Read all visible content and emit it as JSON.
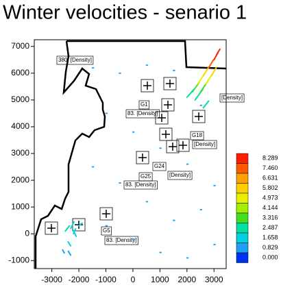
{
  "chart_data": {
    "type": "vector",
    "title": "Winter velocities - senario 1",
    "xlim": [
      -3650,
      3450
    ],
    "ylim": [
      -1300,
      7250
    ],
    "xticks": [
      -3000,
      -2000,
      -1000,
      0,
      1000,
      2000,
      3000
    ],
    "yticks": [
      -1000,
      0,
      1000,
      2000,
      3000,
      4000,
      5000,
      6000,
      7000
    ],
    "colorbar": {
      "labels": [
        "8.289",
        "7.460",
        "6.631",
        "5.802",
        "4.973",
        "4.144",
        "3.316",
        "2.487",
        "1.658",
        "0.829",
        "0.000"
      ],
      "values": [
        8.289,
        7.46,
        6.631,
        5.802,
        4.973,
        4.144,
        3.316,
        2.487,
        1.658,
        0.829,
        0
      ],
      "colors": [
        "#ff2000",
        "#ff5a00",
        "#ffa000",
        "#ffd000",
        "#e8f000",
        "#a0f000",
        "#40e020",
        "#00e0a0",
        "#00d0e0",
        "#20a0f0",
        "#0030f0"
      ]
    },
    "annotations": [
      "380. [Density]",
      "G1",
      "83. [Density]",
      "G18",
      "[Density]",
      "G24",
      "[Density]",
      "G25",
      "83. [Density]",
      "G5",
      "83. [Density]",
      "[Density]"
    ],
    "vectors": {
      "x": [
        2200,
        2400,
        2600,
        2800,
        3000,
        2300,
        2500,
        2700,
        2900,
        3100,
        2000,
        2600,
        -2500,
        -2300,
        -2100,
        -2400,
        -2200,
        -2600,
        -2000,
        -2300,
        -1500,
        -500,
        500,
        1500,
        2500,
        -1000,
        0,
        1000,
        2000,
        3000,
        -1500,
        -500,
        500,
        1500,
        2500,
        -1000,
        0,
        1000,
        2000,
        3000
      ],
      "y": [
        5300,
        5600,
        5900,
        6200,
        6500,
        5000,
        5300,
        5600,
        5900,
        6700,
        5100,
        4700,
        100,
        200,
        -100,
        -300,
        0,
        -600,
        300,
        -800,
        6200,
        6000,
        6300,
        6100,
        4800,
        4500,
        3800,
        3200,
        2600,
        1800,
        2500,
        1900,
        1200,
        500,
        900,
        300,
        -200,
        -700,
        -900,
        -400
      ],
      "dx": [
        250,
        220,
        200,
        180,
        150,
        300,
        260,
        220,
        180,
        120,
        260,
        200,
        150,
        120,
        -100,
        100,
        80,
        60,
        120,
        -90,
        40,
        40,
        40,
        40,
        40,
        40,
        40,
        40,
        40,
        40,
        40,
        40,
        40,
        40,
        40,
        40,
        40,
        40,
        40,
        40
      ],
      "dy": [
        350,
        330,
        320,
        300,
        280,
        420,
        380,
        340,
        300,
        200,
        300,
        260,
        200,
        250,
        220,
        -150,
        180,
        -120,
        100,
        150,
        0,
        0,
        0,
        0,
        0,
        0,
        0,
        0,
        0,
        0,
        0,
        0,
        0,
        0,
        0,
        0,
        0,
        0,
        0,
        0
      ],
      "speed": [
        3.2,
        4.5,
        5.6,
        6.8,
        7.9,
        2.1,
        3.0,
        4.2,
        5.1,
        8.2,
        2.4,
        1.9,
        1.7,
        1.3,
        1.1,
        0.9,
        1.5,
        0.7,
        1.2,
        0.6,
        0.2,
        0.2,
        0.3,
        0.2,
        0.3,
        0.2,
        0.3,
        0.2,
        0.3,
        0.4,
        0.2,
        0.2,
        0.3,
        0.2,
        0.3,
        0.2,
        0.3,
        0.5,
        0.6,
        0.4
      ]
    }
  }
}
